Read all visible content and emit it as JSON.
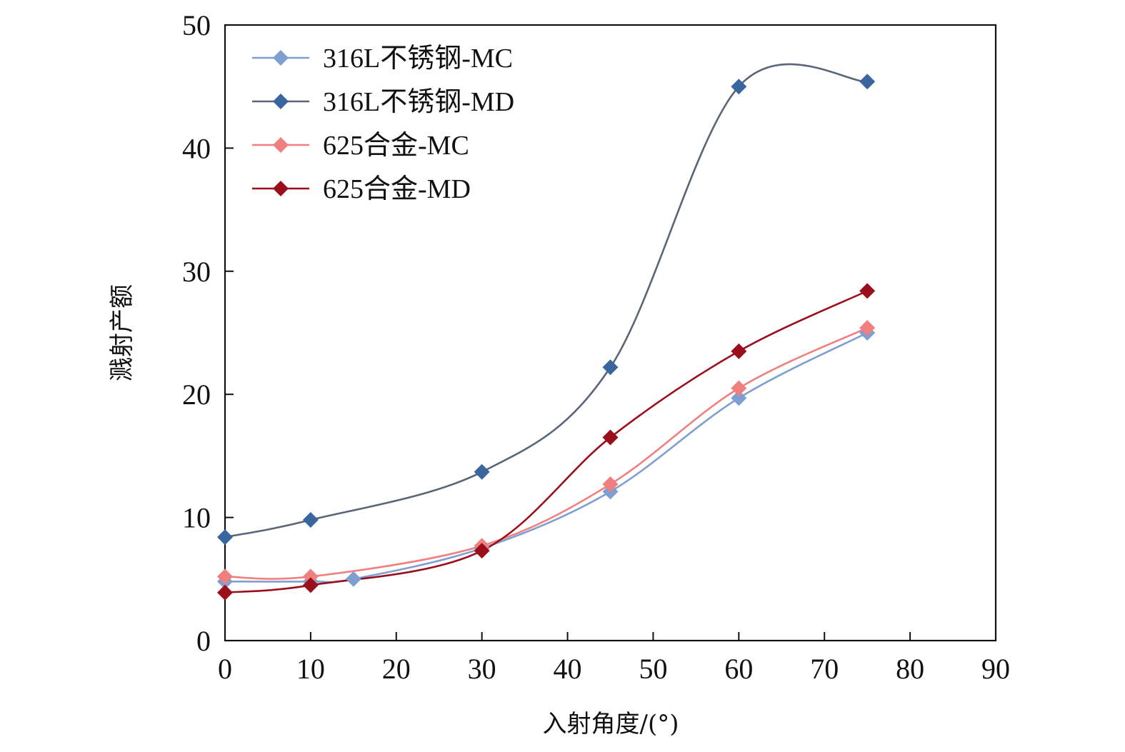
{
  "chart_data": {
    "type": "line",
    "title": "",
    "xlabel": "入射角度/(°)",
    "ylabel": "溅射产额",
    "xlim": [
      0,
      90
    ],
    "ylim": [
      0,
      50
    ],
    "xticks": [
      "0",
      "10",
      "20",
      "30",
      "40",
      "50",
      "60",
      "70",
      "80",
      "90"
    ],
    "yticks": [
      "0",
      "10",
      "20",
      "30",
      "40",
      "50"
    ],
    "grid": false,
    "legend_position": "top-left",
    "smooth": true,
    "marker": "diamond",
    "series": [
      {
        "name": "316L不锈钢-MC",
        "color": "#7f9fd0",
        "x": [
          0,
          10,
          15,
          30,
          45,
          60,
          75
        ],
        "y": [
          4.8,
          4.8,
          5.0,
          7.5,
          12.1,
          19.7,
          25.0
        ]
      },
      {
        "name": "316L不锈钢-MD",
        "color": "#3a66a0",
        "line_color": "#5a6577",
        "x": [
          0,
          10,
          30,
          45,
          60,
          75
        ],
        "y": [
          8.4,
          9.8,
          13.7,
          22.2,
          45.0,
          45.4
        ]
      },
      {
        "name": "625合金-MC",
        "color": "#f07f80",
        "x": [
          0,
          10,
          30,
          45,
          60,
          75
        ],
        "y": [
          5.2,
          5.2,
          7.7,
          12.7,
          20.5,
          25.4
        ]
      },
      {
        "name": "625合金-MD",
        "color": "#9b0f1c",
        "x": [
          0,
          10,
          30,
          45,
          60,
          75
        ],
        "y": [
          3.9,
          4.5,
          7.3,
          16.5,
          23.5,
          28.4
        ]
      }
    ]
  }
}
